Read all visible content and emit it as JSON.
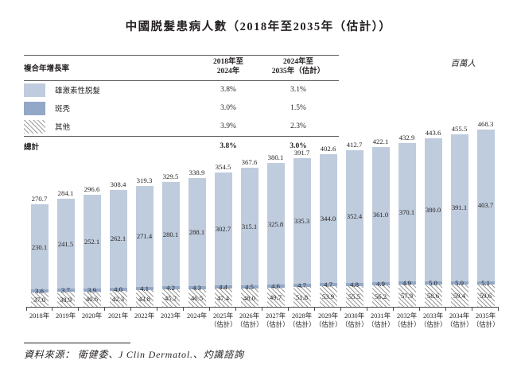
{
  "title": "中國脱髮患病人數（2018年至2035年（估計））",
  "unit_label": "百萬人",
  "cagr_table": {
    "header": {
      "label": "複合年增長率",
      "col1": "2018年至\n2024年",
      "col2": "2024年至\n2035年（估計）"
    },
    "rows": [
      {
        "swatch": "light-blue-swatch",
        "label": "雄激素性脱髮",
        "cagr_2018_2024": "3.8%",
        "cagr_2024_2035": "3.1%"
      },
      {
        "swatch": "dark-blue-swatch",
        "label": "斑秃",
        "cagr_2018_2024": "3.0%",
        "cagr_2024_2035": "1.5%"
      },
      {
        "swatch": "hatch-swatch",
        "label": "其他",
        "cagr_2018_2024": "3.9%",
        "cagr_2024_2035": "2.3%"
      }
    ],
    "total": {
      "label": "總計",
      "cagr_2018_2024": "3.8%",
      "cagr_2024_2035": "3.0%"
    }
  },
  "chart_data": {
    "type": "bar",
    "stacked": true,
    "title": "中國脱髮患病人數（2018年至2035年（估計））",
    "ylabel": "百萬人",
    "legend_position": "top-left",
    "grid": false,
    "categories": [
      "2018年",
      "2019年",
      "2020年",
      "2021年",
      "2022年",
      "2023年",
      "2024年",
      "2025年",
      "2026年",
      "2027年",
      "2028年",
      "2029年",
      "2030年",
      "2031年",
      "2032年",
      "2033年",
      "2034年",
      "2035年"
    ],
    "estimate_note": "（估計）",
    "estimated_from_index": 7,
    "series": [
      {
        "name": "其他",
        "style": "diagonal-hatch",
        "values": [
          37.0,
          38.9,
          40.6,
          42.3,
          43.8,
          45.2,
          46.5,
          47.4,
          48.0,
          49.7,
          51.8,
          53.9,
          55.5,
          56.2,
          57.9,
          58.6,
          59.4,
          59.6
        ]
      },
      {
        "name": "斑秃",
        "color": "#92a8c6",
        "values": [
          3.6,
          3.7,
          3.9,
          4.0,
          4.1,
          4.2,
          4.3,
          4.4,
          4.5,
          4.6,
          4.7,
          4.7,
          4.8,
          4.9,
          4.9,
          5.0,
          5.0,
          5.1
        ]
      },
      {
        "name": "雄激素性脱髮",
        "color": "#bfccdd",
        "values": [
          230.1,
          241.5,
          252.1,
          262.1,
          271.4,
          280.1,
          288.1,
          302.7,
          315.1,
          325.8,
          335.3,
          344.0,
          352.4,
          361.0,
          370.1,
          380.0,
          391.1,
          403.7
        ]
      }
    ],
    "totals": [
      270.7,
      284.1,
      296.6,
      308.4,
      319.3,
      329.5,
      338.9,
      354.5,
      367.6,
      380.1,
      391.7,
      402.6,
      412.7,
      422.1,
      432.9,
      443.6,
      455.5,
      468.3
    ]
  },
  "colors": {
    "androgenetic": "#bfccdd",
    "areata": "#92a8c6",
    "hatch_line": "#9c9c9c",
    "rule": "#58595b"
  },
  "source": "資料來源： 衛健委、J Clin Dermatol.、灼識諮詢"
}
